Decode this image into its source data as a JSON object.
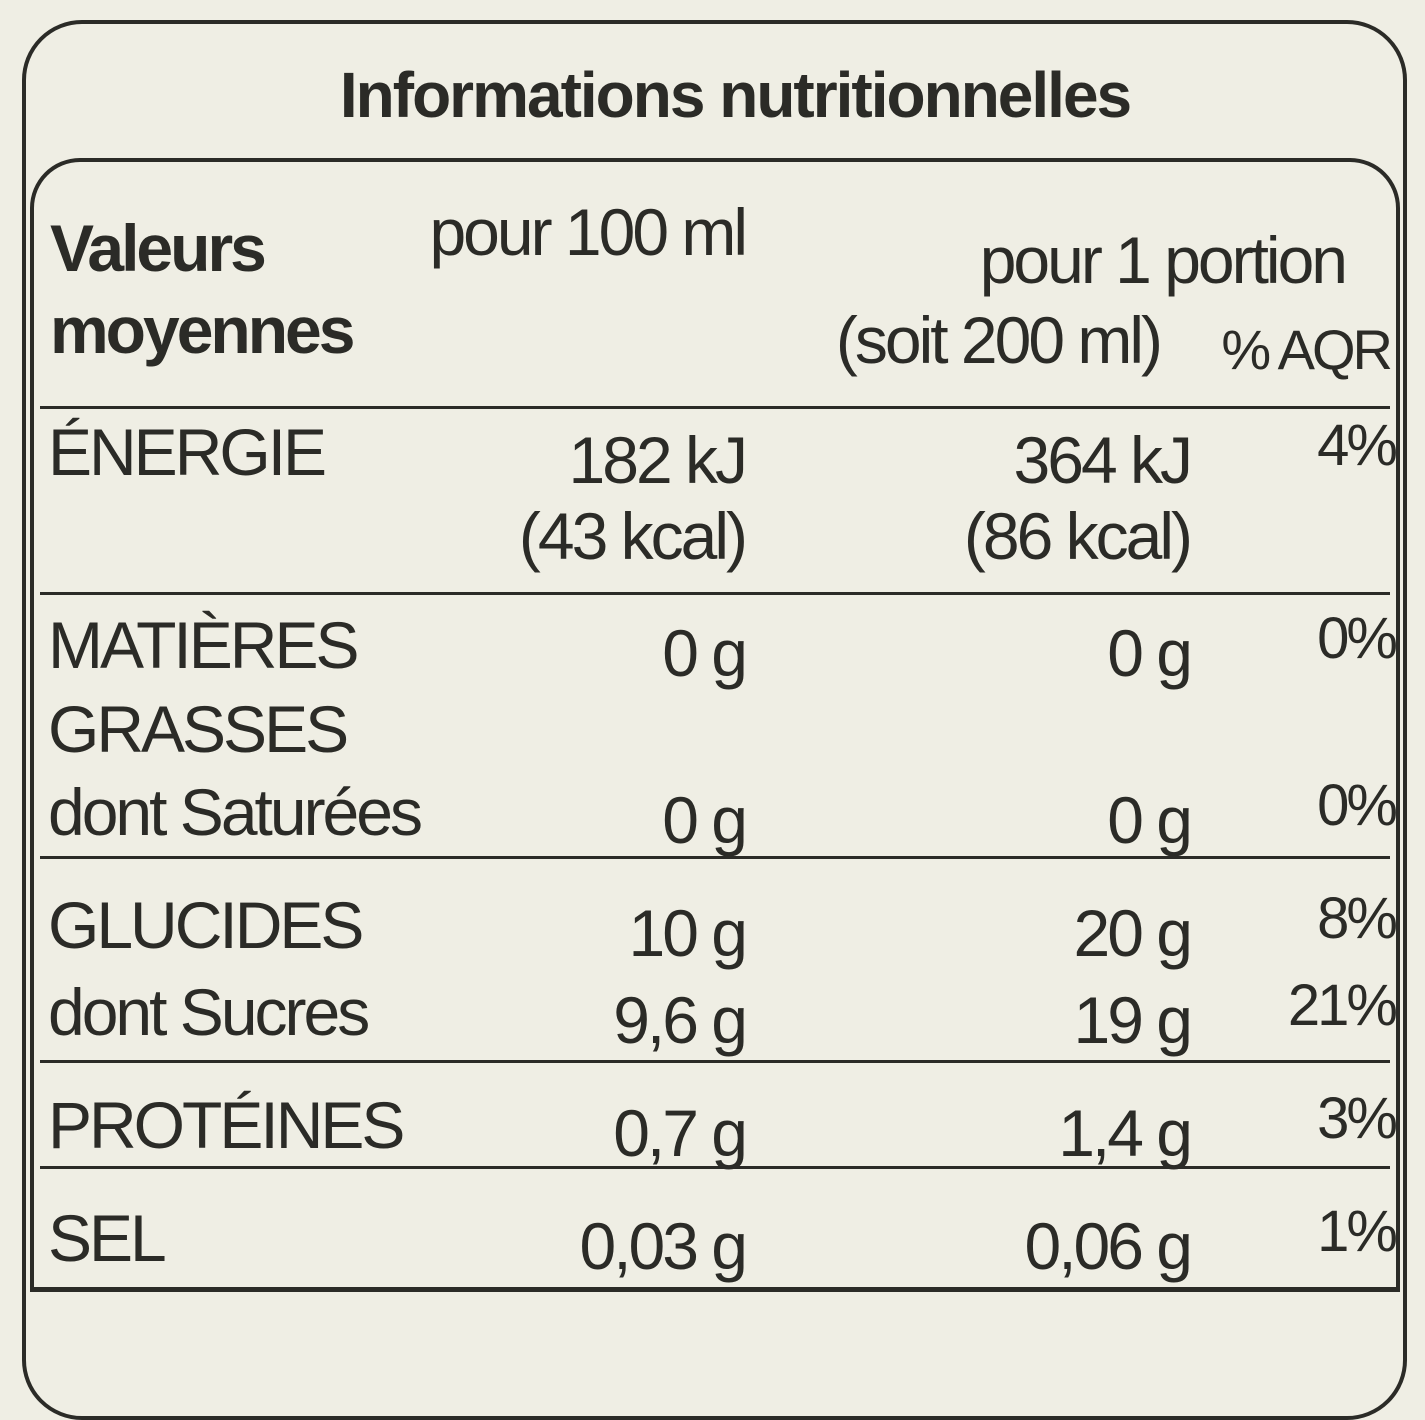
{
  "title": "Informations nutritionnelles",
  "table": {
    "header": {
      "label": [
        "Valeurs",
        "moyennes"
      ],
      "per100": "pour 100 ml",
      "portion": [
        "pour 1 portion",
        "(soit 200 ml)"
      ],
      "aqr": "% AQR"
    },
    "rows": [
      {
        "label": [
          "ÉNERGIE"
        ],
        "per100": [
          "182 kJ",
          "(43 kcal)"
        ],
        "portion": [
          "364 kJ",
          "(86 kcal)"
        ],
        "aqr": "4%"
      },
      {
        "label": [
          "MATIÈRES",
          "GRASSES"
        ],
        "per100": [
          "0 g"
        ],
        "portion": [
          "0 g"
        ],
        "aqr": "0%"
      },
      {
        "label": [
          "dont Saturées"
        ],
        "per100": [
          "0 g"
        ],
        "portion": [
          "0 g"
        ],
        "aqr": "0%"
      },
      {
        "label": [
          "GLUCIDES"
        ],
        "per100": [
          "10 g"
        ],
        "portion": [
          "20 g"
        ],
        "aqr": "8%"
      },
      {
        "label": [
          "dont Sucres"
        ],
        "per100": [
          "9,6 g"
        ],
        "portion": [
          "19 g"
        ],
        "aqr": "21%"
      },
      {
        "label": [
          "PROTÉINES"
        ],
        "per100": [
          "0,7 g"
        ],
        "portion": [
          "1,4 g"
        ],
        "aqr": "3%"
      },
      {
        "label": [
          "SEL"
        ],
        "per100": [
          "0,03 g"
        ],
        "portion": [
          "0,06 g"
        ],
        "aqr": "1%"
      }
    ]
  }
}
